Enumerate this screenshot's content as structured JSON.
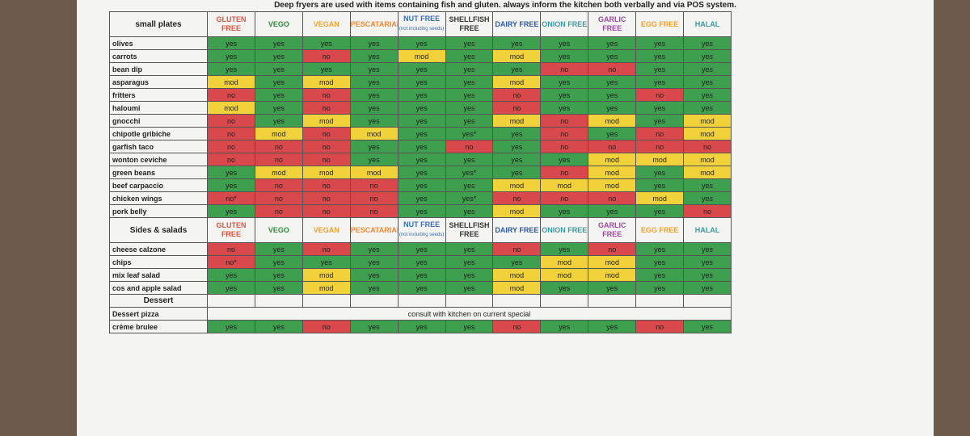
{
  "note": "Deep fryers are used with items containing fish and gluten. always inform the kitchen both verbally and via POS system.",
  "columns": [
    {
      "label": "GLUTEN FREE",
      "color": "#e0513a"
    },
    {
      "label": "VEGO",
      "color": "#2f8a3a"
    },
    {
      "label": "VEGAN",
      "color": "#f0a030"
    },
    {
      "label": "PESCATARIAN",
      "color": "#f08a3a"
    },
    {
      "label": "NUT FREE",
      "sub": "(not including seeds)",
      "color": "#3a6fb0"
    },
    {
      "label": "SHELLFISH FREE",
      "color": "#333333"
    },
    {
      "label": "DAIRY FREE",
      "color": "#2a5aa8"
    },
    {
      "label": "ONION FREE",
      "color": "#3a9aa0"
    },
    {
      "label": "GARLIC FREE",
      "color": "#9a4aa0"
    },
    {
      "label": "EGG FREE",
      "color": "#f0a030"
    },
    {
      "label": "HALAL",
      "color": "#3a9aa0"
    }
  ],
  "cell_colors": {
    "yes": "#3e9f4e",
    "yes*": "#3e9f4e",
    "mod": "#f1d23a",
    "no": "#d9484a",
    "no*": "#d9484a"
  },
  "sections": [
    {
      "title": "small plates",
      "rows": [
        {
          "name": "olives",
          "values": [
            "yes",
            "yes",
            "yes",
            "yes",
            "yes",
            "yes",
            "yes",
            "yes",
            "yes",
            "yes",
            "yes"
          ]
        },
        {
          "name": "carrots",
          "values": [
            "yes",
            "yes",
            "no",
            "yes",
            "mod",
            "yes",
            "mod",
            "yes",
            "yes",
            "yes",
            "yes"
          ]
        },
        {
          "name": "bean dip",
          "values": [
            "yes",
            "yes",
            "yes",
            "yes",
            "yes",
            "yes",
            "yes",
            "no",
            "no",
            "yes",
            "yes"
          ]
        },
        {
          "name": "asparagus",
          "values": [
            "mod",
            "yes",
            "mod",
            "yes",
            "yes",
            "yes",
            "mod",
            "yes",
            "yes",
            "yes",
            "yes"
          ]
        },
        {
          "name": "fritters",
          "values": [
            "no",
            "yes",
            "no",
            "yes",
            "yes",
            "yes",
            "no",
            "yes",
            "yes",
            "no",
            "yes"
          ]
        },
        {
          "name": "haloumi",
          "values": [
            "mod",
            "yes",
            "no",
            "yes",
            "yes",
            "yes",
            "no",
            "yes",
            "yes",
            "yes",
            "yes"
          ]
        },
        {
          "name": "gnocchi",
          "values": [
            "no",
            "yes",
            "mod",
            "yes",
            "yes",
            "yes",
            "mod",
            "no",
            "mod",
            "yes",
            "mod"
          ]
        },
        {
          "name": "chipotle gribiche",
          "values": [
            "no",
            "mod",
            "no",
            "mod",
            "yes",
            "yes*",
            "yes",
            "no",
            "yes",
            "no",
            "mod"
          ]
        },
        {
          "name": "garfish taco",
          "values": [
            "no",
            "no",
            "no",
            "yes",
            "yes",
            "no",
            "yes",
            "no",
            "no",
            "no",
            "no"
          ]
        },
        {
          "name": "wonton ceviche",
          "values": [
            "no",
            "no",
            "no",
            "yes",
            "yes",
            "yes",
            "yes",
            "yes",
            "mod",
            "mod",
            "mod"
          ]
        },
        {
          "name": "green beans",
          "values": [
            "yes",
            "mod",
            "mod",
            "mod",
            "yes",
            "yes*",
            "yes",
            "no",
            "mod",
            "yes",
            "mod"
          ]
        },
        {
          "name": "beef carpaccio",
          "values": [
            "yes",
            "no",
            "no",
            "no",
            "yes",
            "yes",
            "mod",
            "mod",
            "mod",
            "yes",
            "yes"
          ]
        },
        {
          "name": "chicken wings",
          "values": [
            "no*",
            "no",
            "no",
            "no",
            "yes",
            "yes*",
            "no",
            "no",
            "no",
            "mod",
            "yes"
          ]
        },
        {
          "name": "pork belly",
          "values": [
            "yes",
            "no",
            "no",
            "no",
            "yes",
            "yes",
            "mod",
            "yes",
            "yes",
            "yes",
            "no"
          ]
        }
      ]
    },
    {
      "title": "Sides & salads",
      "rows": [
        {
          "name": "cheese calzone",
          "values": [
            "no",
            "yes",
            "no",
            "yes",
            "yes",
            "yes",
            "no",
            "yes",
            "no",
            "yes",
            "yes"
          ]
        },
        {
          "name": "chips",
          "values": [
            "no*",
            "yes",
            "yes",
            "yes",
            "yes",
            "yes",
            "yes",
            "mod",
            "mod",
            "yes",
            "yes"
          ]
        },
        {
          "name": "mix leaf salad",
          "values": [
            "yes",
            "yes",
            "mod",
            "yes",
            "yes",
            "yes",
            "mod",
            "mod",
            "mod",
            "yes",
            "yes"
          ]
        },
        {
          "name": "cos and apple salad",
          "values": [
            "yes",
            "yes",
            "mod",
            "yes",
            "yes",
            "yes",
            "mod",
            "yes",
            "yes",
            "yes",
            "yes"
          ]
        }
      ]
    },
    {
      "title": "Dessert",
      "rows": [
        {
          "name": "Dessert pizza",
          "note": "consult with kitchen on current special"
        },
        {
          "name": "crème brulee",
          "values": [
            "yes",
            "yes",
            "no",
            "yes",
            "yes",
            "yes",
            "no",
            "yes",
            "yes",
            "no",
            "yes"
          ]
        }
      ]
    }
  ]
}
